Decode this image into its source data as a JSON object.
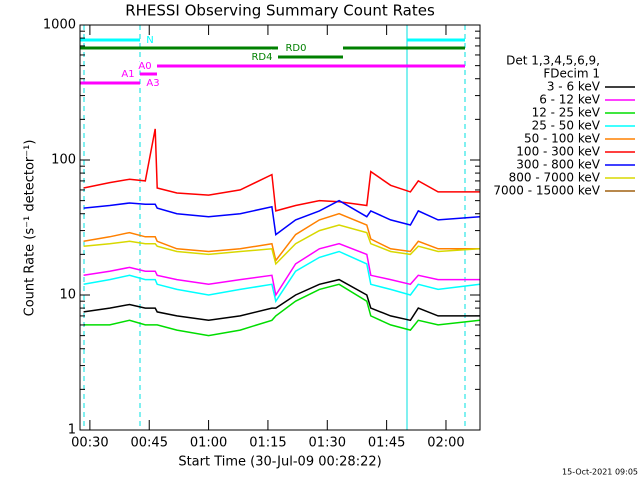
{
  "chart_data": {
    "type": "line",
    "title": "RHESSI Observing Summary Count Rates",
    "xlabel": "Start Time (30-Jul-09 00:28:22)",
    "ylabel": "Count Rate (s⁻¹ detector⁻¹)",
    "legend_title": [
      "Det 1,3,4,5,6,9,",
      "FDecim 1"
    ],
    "footer": "15-Oct-2021 09:05",
    "annotations": [
      "N",
      "RD0",
      "RD4",
      "A0",
      "A1",
      "A3"
    ],
    "log_y": true,
    "xlim": [
      27.5,
      128.6
    ],
    "xticks": [
      {
        "value": 30,
        "label": "00:30"
      },
      {
        "value": 45,
        "label": "00:45"
      },
      {
        "value": 60,
        "label": "01:00"
      },
      {
        "value": 75,
        "label": "01:15"
      },
      {
        "value": 90,
        "label": "01:30"
      },
      {
        "value": 105,
        "label": "01:45"
      },
      {
        "value": 120,
        "label": "02:00"
      }
    ],
    "ylim": [
      1,
      1000
    ],
    "yticks": [
      1,
      10,
      100,
      1000
    ],
    "x": [
      28.4,
      35,
      40,
      44,
      46.5,
      47,
      52,
      60,
      68,
      76,
      77,
      82,
      88,
      93,
      100,
      101,
      106,
      111,
      113,
      118,
      128.6
    ],
    "series": [
      {
        "name": "3 - 6 keV",
        "color": "#000000",
        "values": [
          7.5,
          8,
          8.5,
          8,
          8,
          7.5,
          7,
          6.5,
          7,
          8,
          8,
          10,
          12,
          13,
          10,
          8,
          7,
          6.5,
          8,
          7,
          7
        ]
      },
      {
        "name": "6 - 12 keV",
        "color": "#ff00ff",
        "values": [
          14,
          15,
          16,
          15,
          15,
          14,
          13,
          12,
          13,
          14,
          10,
          17,
          22,
          24,
          20,
          14,
          13,
          12,
          14,
          13,
          13
        ]
      },
      {
        "name": "12 - 25 keV",
        "color": "#00dd00",
        "values": [
          6,
          6,
          6.5,
          6,
          6,
          6,
          5.5,
          5,
          5.5,
          6.5,
          7,
          9,
          11,
          12,
          9,
          7,
          6,
          5.5,
          6.5,
          6,
          6.5
        ]
      },
      {
        "name": "25 - 50 keV",
        "color": "#00ffff",
        "values": [
          12,
          13,
          14,
          13,
          13,
          12,
          11,
          10,
          11,
          12,
          9,
          15,
          19,
          21,
          17,
          12,
          11,
          10,
          12,
          11,
          12
        ]
      },
      {
        "name": "50 - 100 keV",
        "color": "#ff8000",
        "values": [
          25,
          27,
          29,
          27,
          27,
          25,
          22,
          21,
          22,
          24,
          18,
          28,
          36,
          40,
          33,
          26,
          22,
          21,
          25,
          22,
          22
        ]
      },
      {
        "name": "100 - 300 keV",
        "color": "#ff0000",
        "values": [
          62,
          68,
          72,
          70,
          170,
          62,
          57,
          55,
          60,
          78,
          42,
          46,
          50,
          49,
          46,
          82,
          65,
          58,
          70,
          58,
          58
        ]
      },
      {
        "name": "300 - 800 keV",
        "color": "#0000ff",
        "values": [
          44,
          46,
          48,
          47,
          47,
          44,
          40,
          38,
          40,
          45,
          28,
          36,
          42,
          50,
          38,
          42,
          36,
          33,
          42,
          36,
          38
        ]
      },
      {
        "name": "800 - 7000 keV",
        "color": "#d8d800",
        "values": [
          23,
          24,
          25,
          24,
          24,
          23,
          21,
          20,
          21,
          22,
          17,
          24,
          30,
          33,
          29,
          24,
          21,
          20,
          23,
          21,
          22
        ]
      },
      {
        "name": "7000 - 15000 keV",
        "color": "#a06010",
        "values": [
          null,
          null,
          null,
          null,
          null,
          null,
          null,
          null,
          null,
          null,
          null,
          null,
          null,
          null,
          null,
          null,
          null,
          null,
          null,
          null,
          null
        ]
      }
    ]
  }
}
